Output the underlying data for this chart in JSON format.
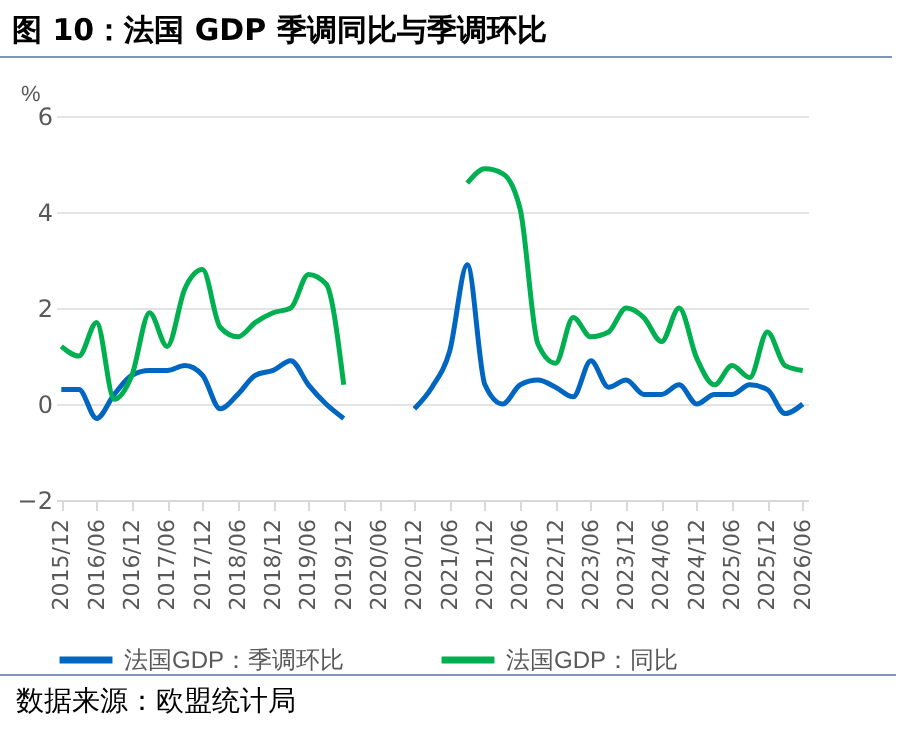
{
  "chart_data": {
    "type": "line",
    "title": "图 10：法国 GDP 季调同比与季调环比",
    "ylabel": "%",
    "categories": [
      "2015/12",
      null,
      "2016/06",
      null,
      "2016/12",
      null,
      "2017/06",
      null,
      "2017/12",
      null,
      "2018/06",
      null,
      "2018/12",
      null,
      "2019/06",
      null,
      "2019/12",
      null,
      "2020/06",
      null,
      "2020/12",
      null,
      "2021/06",
      null,
      "2021/12",
      null,
      "2022/06",
      null,
      "2022/12",
      null,
      "2023/06",
      null,
      "2023/12",
      null,
      "2024/06",
      null,
      "2024/12",
      null,
      "2025/06",
      null,
      "2025/12",
      null,
      "2026/06"
    ],
    "series": [
      {
        "name": "法国GDP：季调环比",
        "color": "#0066c0",
        "values": [
          0.3,
          0.3,
          -0.3,
          0.2,
          0.6,
          0.7,
          0.7,
          0.8,
          0.6,
          -0.1,
          0.2,
          0.6,
          0.7,
          0.9,
          0.4,
          0.0,
          -0.3,
          null,
          null,
          null,
          -0.1,
          0.35,
          1.1,
          2.9,
          0.4,
          0.0,
          0.4,
          0.5,
          0.35,
          0.15,
          0.9,
          0.35,
          0.5,
          0.2,
          0.2,
          0.4,
          0.0,
          0.2,
          0.2,
          0.4,
          0.3,
          -0.2,
          0.0
        ]
      },
      {
        "name": "法国GDP：同比",
        "color": "#00b050",
        "values": [
          1.2,
          1.0,
          1.7,
          0.1,
          0.6,
          1.9,
          1.2,
          2.4,
          2.8,
          1.6,
          1.4,
          1.7,
          1.9,
          2.0,
          2.7,
          2.5,
          0.4,
          null,
          null,
          null,
          null,
          null,
          null,
          4.6,
          4.9,
          4.8,
          4.05,
          1.25,
          0.85,
          1.8,
          1.4,
          1.5,
          2.0,
          1.8,
          1.3,
          2.0,
          0.95,
          0.4,
          0.8,
          0.55,
          1.5,
          0.8,
          0.7
        ]
      }
    ],
    "ylim": [
      -2,
      6
    ],
    "yticks": [
      -2,
      0,
      2,
      4,
      6
    ],
    "grid": "y",
    "legend": "bottom",
    "annotations": [
      "数据来源：欧盟统计局"
    ]
  }
}
